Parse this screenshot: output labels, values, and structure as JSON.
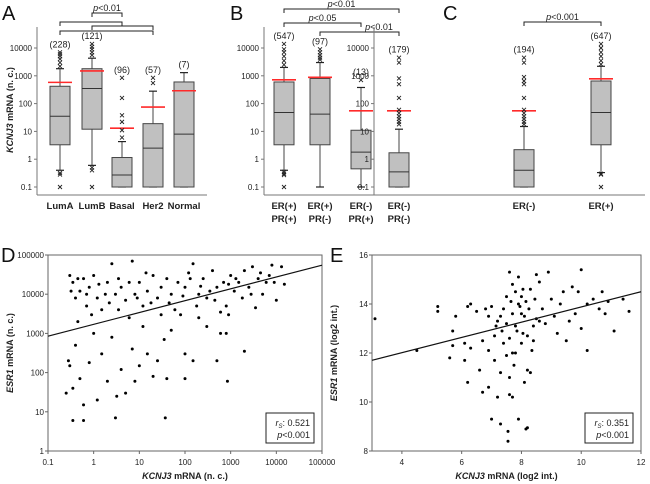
{
  "colors": {
    "box": "#c0c0c0",
    "mean": "#ff2a2a",
    "line": "#333333",
    "point": "#000000"
  },
  "chart_data": [
    {
      "panel": "A",
      "type": "box",
      "ylabel_italic": "KCNJ3",
      "ylabel_rest": " mRNA (n. c.)",
      "yscale": "log",
      "ylim": [
        0.1,
        50000
      ],
      "yticks": [
        "0.1",
        "1",
        "10",
        "100",
        "1000",
        "10000"
      ],
      "groups": [
        {
          "label": [
            "LumA"
          ],
          "n": "(228)",
          "low": 0.4,
          "q1": 3.3,
          "median": 35,
          "q3": 420,
          "high": 1800,
          "mean": 580,
          "outliers": [
            0.1,
            0.28,
            0.32,
            2200,
            3000,
            4000,
            5000,
            6000,
            7000
          ]
        },
        {
          "label": [
            "LumB"
          ],
          "n": "(121)",
          "low": 0.6,
          "q1": 12,
          "median": 350,
          "q3": 1800,
          "high": 4300,
          "mean": 1500,
          "outliers": [
            0.1,
            0.4,
            0.5,
            5500,
            7000,
            9000,
            11000,
            14000
          ]
        },
        {
          "label": [
            "Basal"
          ],
          "n": "(96)",
          "low": 0.1,
          "q1": 0.1,
          "median": 0.27,
          "q3": 1.15,
          "high": 4.3,
          "mean": 13,
          "outliers": [
            6,
            11,
            22,
            38,
            160,
            850
          ]
        },
        {
          "label": [
            "Her2"
          ],
          "n": "(57)",
          "low": 0.1,
          "q1": 0.1,
          "median": 2.5,
          "q3": 19,
          "high": 280,
          "mean": 75,
          "outliers": [
            550,
            850
          ]
        },
        {
          "label": [
            "Normal"
          ],
          "n": "(7)",
          "low": 0.1,
          "q1": 0.1,
          "median": 8,
          "q3": 600,
          "high": 1300,
          "mean": 290,
          "outliers": []
        }
      ],
      "comparisons": [
        {
          "a": 1,
          "b": 2,
          "label": "p<0.01"
        },
        {
          "a": 0,
          "b": 2,
          "label": ""
        },
        {
          "a": 1,
          "b": 3,
          "label": ""
        },
        {
          "a": 0,
          "b": 3,
          "label": ""
        }
      ]
    },
    {
      "panel": "B",
      "type": "box",
      "yscale": "log",
      "ylim": [
        0.1,
        50000
      ],
      "yticks": [
        "0.1",
        "1",
        "10",
        "100",
        "1000",
        "10000"
      ],
      "groups": [
        {
          "label": [
            "ER(+)",
            "PR(+)"
          ],
          "n": "(547)",
          "low": 0.4,
          "q1": 3.3,
          "median": 48,
          "q3": 600,
          "high": 2000,
          "mean": 720,
          "outliers": [
            0.1,
            0.27,
            0.3,
            0.35,
            2500,
            3500,
            5000,
            7000,
            9000,
            14000
          ]
        },
        {
          "label": [
            "ER(+)",
            "PR(-)"
          ],
          "n": "(97)",
          "low": 0.1,
          "q1": 3.3,
          "median": 42,
          "q3": 800,
          "high": 3000,
          "mean": 880,
          "outliers": [
            3800,
            4500,
            5500,
            7000,
            9000
          ]
        },
        {
          "label": [
            "ER(-)",
            "PR(+)"
          ],
          "n": "(13)",
          "low": 0.1,
          "q1": 0.45,
          "median": 1.8,
          "q3": 11,
          "high": 380,
          "mean": 55,
          "outliers": [
            700
          ]
        },
        {
          "label": [
            "ER(-)",
            "PR(-)"
          ],
          "n": "(179)",
          "low": 0.1,
          "q1": 0.1,
          "median": 0.35,
          "q3": 1.7,
          "high": 12,
          "mean": 55,
          "outliers": [
            18,
            22,
            28,
            35,
            45,
            60,
            160,
            500,
            800,
            3000,
            4500
          ]
        }
      ],
      "comparisons": [
        {
          "a": 0,
          "b": 3,
          "label": "p<0.01"
        },
        {
          "a": 0,
          "b": 2,
          "label": "p<0.05"
        },
        {
          "a": 1,
          "b": 3,
          "label": "p<0.01"
        }
      ]
    },
    {
      "panel": "C",
      "type": "box",
      "yscale": "log",
      "ylim": [
        0.1,
        50000
      ],
      "yticks": [
        "0.1",
        "1",
        "10",
        "100",
        "1000",
        "10000"
      ],
      "groups": [
        {
          "label": [
            "ER(-)"
          ],
          "n": "(194)",
          "low": 0.1,
          "q1": 0.1,
          "median": 0.4,
          "q3": 2.2,
          "high": 15,
          "mean": 55,
          "outliers": [
            18,
            22,
            28,
            35,
            45,
            60,
            160,
            500,
            650,
            900,
            3000,
            4500
          ]
        },
        {
          "label": [
            "ER(+)"
          ],
          "n": "(647)",
          "low": 0.33,
          "q1": 3.3,
          "median": 48,
          "q3": 650,
          "high": 2200,
          "mean": 780,
          "outliers": [
            0.1,
            0.28,
            0.3,
            2600,
            3500,
            5000,
            7000,
            10000,
            14000
          ]
        }
      ],
      "comparisons": [
        {
          "a": 0,
          "b": 1,
          "label": "p<0.001"
        }
      ]
    },
    {
      "panel": "D",
      "type": "scatter",
      "xscale": "log",
      "yscale": "log",
      "xlim": [
        0.1,
        100000
      ],
      "ylim": [
        1,
        100000
      ],
      "xticks": [
        "0.1",
        "1",
        "10",
        "100",
        "1000",
        "10000",
        "100000"
      ],
      "yticks": [
        "1",
        "10",
        "100",
        "1000",
        "10000",
        "100000"
      ],
      "xlabel_italic": "KCNJ3",
      "xlabel_rest": " mRNA (n. c.)",
      "ylabel_italic": "ESR1",
      "ylabel_rest": " mRNA (n. c.)",
      "stat": {
        "r_label": "r",
        "r_sub": "S",
        "r_value": ": 0.521",
        "p_text": "p<0.001"
      },
      "fit": [
        [
          0.1,
          850
        ],
        [
          100000,
          55000
        ]
      ],
      "points": [
        [
          0.3,
          30000
        ],
        [
          0.35,
          20000
        ],
        [
          0.4,
          8000
        ],
        [
          0.5,
          12000
        ],
        [
          0.6,
          25000
        ],
        [
          0.7,
          5000
        ],
        [
          0.8,
          15000
        ],
        [
          1,
          30000
        ],
        [
          1.2,
          8000
        ],
        [
          1.5,
          4000
        ],
        [
          2,
          20000
        ],
        [
          2.5,
          60000
        ],
        [
          3,
          10000
        ],
        [
          4,
          15000
        ],
        [
          5,
          7000
        ],
        [
          7,
          70000
        ],
        [
          8,
          10000
        ],
        [
          10,
          20000
        ],
        [
          12,
          5000
        ],
        [
          15,
          12000
        ],
        [
          20,
          30000
        ],
        [
          25,
          8000
        ],
        [
          30,
          15000
        ],
        [
          40,
          25000
        ],
        [
          50,
          10000
        ],
        [
          70,
          20000
        ],
        [
          100,
          15000
        ],
        [
          120,
          35000
        ],
        [
          150,
          60000
        ],
        [
          200,
          10000
        ],
        [
          250,
          25000
        ],
        [
          300,
          8000
        ],
        [
          400,
          40000
        ],
        [
          500,
          15000
        ],
        [
          700,
          20000
        ],
        [
          800,
          5000
        ],
        [
          1000,
          30000
        ],
        [
          1200,
          12000
        ],
        [
          1500,
          20000
        ],
        [
          2000,
          40000
        ],
        [
          2500,
          15000
        ],
        [
          3000,
          50000
        ],
        [
          4000,
          25000
        ],
        [
          5000,
          10000
        ],
        [
          7000,
          30000
        ],
        [
          8000,
          55000
        ],
        [
          10000,
          7000
        ],
        [
          13000,
          50000
        ],
        [
          15000,
          18000
        ],
        [
          0.3,
          150
        ],
        [
          0.35,
          40
        ],
        [
          0.4,
          500
        ],
        [
          0.5,
          70
        ],
        [
          0.6,
          15
        ],
        [
          0.35,
          6
        ],
        [
          0.6,
          6
        ],
        [
          0.8,
          180
        ],
        [
          1,
          1000
        ],
        [
          1.2,
          20
        ],
        [
          1.5,
          300
        ],
        [
          2,
          60
        ],
        [
          2.5,
          800
        ],
        [
          3,
          7
        ],
        [
          3.2,
          25
        ],
        [
          4,
          120
        ],
        [
          5,
          30
        ],
        [
          6,
          2500
        ],
        [
          7,
          400
        ],
        [
          8,
          60
        ],
        [
          10,
          150
        ],
        [
          12,
          1500
        ],
        [
          15,
          300
        ],
        [
          20,
          80
        ],
        [
          25,
          200
        ],
        [
          30,
          3000
        ],
        [
          35,
          700
        ],
        [
          37,
          7
        ],
        [
          40,
          70
        ],
        [
          50,
          1200
        ],
        [
          80,
          3000
        ],
        [
          100,
          300
        ],
        [
          100,
          70
        ],
        [
          150,
          200
        ],
        [
          200,
          2500
        ],
        [
          300,
          1500
        ],
        [
          500,
          200
        ],
        [
          600,
          1000
        ],
        [
          800,
          1000
        ],
        [
          850,
          60
        ],
        [
          900,
          3000
        ],
        [
          2000,
          350
        ],
        [
          0.25,
          30
        ],
        [
          0.28,
          200
        ],
        [
          0.45,
          2000
        ],
        [
          0.9,
          3000
        ],
        [
          1.8,
          10000
        ],
        [
          3.5,
          4000
        ],
        [
          6,
          20000
        ],
        [
          18,
          6000
        ],
        [
          60,
          4000
        ],
        [
          180,
          5000
        ],
        [
          350,
          12000
        ],
        [
          600,
          3500
        ],
        [
          1800,
          8000
        ],
        [
          3500,
          4500
        ],
        [
          6000,
          20000
        ],
        [
          0.32,
          12000
        ],
        [
          0.45,
          25000
        ],
        [
          0.7,
          10000
        ],
        [
          1.3,
          18000
        ],
        [
          2.2,
          6000
        ],
        [
          3.5,
          25000
        ],
        [
          9,
          8000
        ],
        [
          14,
          35000
        ],
        [
          45,
          6000
        ],
        [
          90,
          9000
        ],
        [
          130,
          25000
        ],
        [
          220,
          16000
        ],
        [
          450,
          7000
        ],
        [
          900,
          18000
        ],
        [
          1300,
          25000
        ],
        [
          2800,
          10000
        ],
        [
          4500,
          35000
        ],
        [
          9000,
          20000
        ]
      ]
    },
    {
      "panel": "E",
      "type": "scatter",
      "xscale": "linear",
      "yscale": "linear",
      "xlim": [
        3,
        12
      ],
      "ylim": [
        8,
        16
      ],
      "xticks": [
        "4",
        "6",
        "8",
        "10",
        "12"
      ],
      "yticks": [
        "8",
        "10",
        "12",
        "14",
        "16"
      ],
      "xlabel_italic": "KCNJ3",
      "xlabel_rest": " mRNA (log2 int.)",
      "ylabel_italic": "ESR1",
      "ylabel_rest": " mRNA (log2 int.)",
      "stat": {
        "r_label": "r",
        "r_sub": "S",
        "r_value": ": 0.351",
        "p_text": "p<0.001"
      },
      "fit": [
        [
          3,
          11.7
        ],
        [
          12,
          14.5
        ]
      ],
      "points": [
        [
          3.1,
          13.4
        ],
        [
          4.5,
          12.1
        ],
        [
          5.2,
          13.9
        ],
        [
          5.2,
          13.7
        ],
        [
          5.6,
          11.8
        ],
        [
          5.7,
          12.9
        ],
        [
          5.8,
          13.5
        ],
        [
          5.7,
          12.3
        ],
        [
          6.1,
          11.7
        ],
        [
          6.1,
          12.4
        ],
        [
          6.2,
          10.8
        ],
        [
          6.3,
          14
        ],
        [
          6.2,
          13.9
        ],
        [
          6.3,
          12.2
        ],
        [
          6.5,
          13.7
        ],
        [
          6.6,
          11.3
        ],
        [
          6.7,
          12.5
        ],
        [
          6.7,
          10.4
        ],
        [
          6.8,
          13.8
        ],
        [
          6.9,
          10.6
        ],
        [
          6.9,
          12.1
        ],
        [
          7,
          9.3
        ],
        [
          7,
          13.9
        ],
        [
          7.1,
          12.7
        ],
        [
          7.2,
          13.3
        ],
        [
          7.2,
          10.2
        ],
        [
          7.3,
          9.1
        ],
        [
          7.3,
          11.2
        ],
        [
          7.3,
          13.5
        ],
        [
          7.4,
          12.4
        ],
        [
          7.5,
          14.3
        ],
        [
          7.5,
          11.9
        ],
        [
          7.55,
          8.8
        ],
        [
          7.55,
          8.4
        ],
        [
          7.6,
          15.3
        ],
        [
          7.6,
          10.3
        ],
        [
          7.6,
          11
        ],
        [
          7.7,
          10.2
        ],
        [
          7.7,
          14.8
        ],
        [
          7.8,
          12
        ],
        [
          7.8,
          13.1
        ],
        [
          7.9,
          15.1
        ],
        [
          7.9,
          9.3
        ],
        [
          8,
          14.3
        ],
        [
          8,
          13.6
        ],
        [
          8.05,
          12.8
        ],
        [
          8.1,
          10.8
        ],
        [
          8.15,
          8.9
        ],
        [
          8.2,
          8.95
        ],
        [
          8.2,
          11.3
        ],
        [
          8.3,
          11.2
        ],
        [
          8.3,
          14.6
        ],
        [
          8.4,
          12.5
        ],
        [
          8.5,
          13.4
        ],
        [
          8.5,
          15.2
        ],
        [
          8.6,
          14.9
        ],
        [
          8.7,
          13.8
        ],
        [
          8.8,
          13.2
        ],
        [
          8.9,
          15.3
        ],
        [
          9,
          14.2
        ],
        [
          9.1,
          13.5
        ],
        [
          9.2,
          12.8
        ],
        [
          9.3,
          14
        ],
        [
          9.4,
          14.5
        ],
        [
          9.5,
          12.5
        ],
        [
          9.6,
          13.3
        ],
        [
          9.7,
          14.7
        ],
        [
          9.8,
          13.6
        ],
        [
          9.9,
          14.5
        ],
        [
          10,
          15.4
        ],
        [
          10,
          13
        ],
        [
          10.2,
          12.1
        ],
        [
          10.2,
          14
        ],
        [
          10.4,
          14.2
        ],
        [
          10.6,
          13.8
        ],
        [
          10.7,
          14.5
        ],
        [
          10.8,
          13.6
        ],
        [
          10.9,
          14.1
        ],
        [
          11.1,
          12.9
        ],
        [
          11.4,
          14.2
        ],
        [
          11.6,
          13.7
        ],
        [
          7.7,
          12
        ],
        [
          7.9,
          14
        ],
        [
          8.1,
          13.5
        ],
        [
          7.4,
          13.8
        ],
        [
          7.8,
          14.5
        ],
        [
          8.2,
          12.7
        ],
        [
          7.6,
          12.6
        ],
        [
          8.4,
          13.1
        ],
        [
          6.9,
          13.5
        ],
        [
          7.1,
          11.7
        ],
        [
          8.6,
          13.3
        ],
        [
          8,
          12.4
        ],
        [
          7.7,
          13.6
        ],
        [
          7.95,
          13.9
        ],
        [
          8.15,
          14.1
        ],
        [
          7.5,
          13.2
        ],
        [
          7.85,
          12.9
        ],
        [
          8.05,
          14.6
        ],
        [
          7.65,
          14.1
        ],
        [
          8.25,
          13.8
        ],
        [
          7.35,
          12.9
        ],
        [
          8.45,
          14.2
        ],
        [
          7.15,
          13.1
        ],
        [
          7.75,
          11.5
        ],
        [
          8.35,
          12.1
        ]
      ]
    }
  ]
}
